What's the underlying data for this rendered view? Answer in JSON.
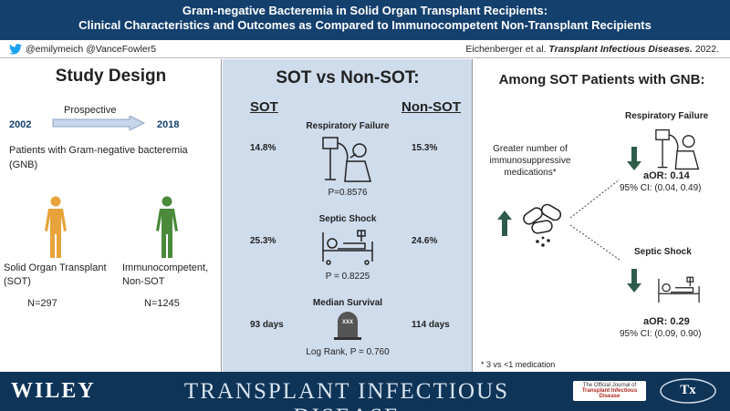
{
  "header": {
    "title_line1": "Gram-negative Bacteremia in Solid Organ Transplant Recipients:",
    "title_line2": "Clinical Characteristics and Outcomes as Compared to Immunocompetent Non-Transplant Recipients"
  },
  "subbar": {
    "handles": "@emilymeich @VanceFowler5",
    "authors": "Eichenberger et al.",
    "journal": "Transplant Infectious Diseases.",
    "year": "2022."
  },
  "left": {
    "heading": "Study Design",
    "year_start": "2002",
    "design": "Prospective",
    "year_end": "2018",
    "population": "Patients with Gram-negative bacteremia (GNB)",
    "sot_label_line1": "Solid Organ Transplant",
    "sot_label_line2": "(SOT)",
    "nonsot_label_line1": "Immunocompetent,",
    "nonsot_label_line2": "Non-SOT",
    "sot_n": "N=297",
    "nonsot_n": "N=1245",
    "colors": {
      "sot_figure": "#e8a33a",
      "nonsot_figure": "#4a8a3a"
    }
  },
  "middle": {
    "heading": "SOT vs Non-SOT:",
    "col_sot": "SOT",
    "col_nonsot": "Non-SOT",
    "outcomes": [
      {
        "name": "Respiratory Failure",
        "sot": "14.8%",
        "nonsot": "15.3%",
        "stat": "P=0.8576",
        "icon": "ventilator-icon"
      },
      {
        "name": "Septic Shock",
        "sot": "25.3%",
        "nonsot": "24.6%",
        "stat": "P = 0.8225",
        "icon": "hospital-bed-icon"
      },
      {
        "name": "Median Survival",
        "sot": "93 days",
        "nonsot": "114 days",
        "stat": "Log Rank, P = 0.760",
        "icon": "tombstone-icon"
      }
    ],
    "tombstone_text": "XXX"
  },
  "right": {
    "heading": "Among SOT Patients with GNB:",
    "exposure": "Greater number of immunosuppressive medications*",
    "outcomes": [
      {
        "name": "Respiratory Failure",
        "aor_label": "aOR:",
        "aor": "0.14",
        "ci": "95% CI: (0.04, 0.49)"
      },
      {
        "name": "Septic Shock",
        "aor_label": "aOR:",
        "aor": "0.29",
        "ci": "95% CI: (0.09, 0.90)"
      }
    ],
    "footnote": "* 3 vs <1 medication"
  },
  "footer": {
    "publisher": "WILEY",
    "journal": "TRANSPLANT INFECTIOUS DISEASE",
    "official_line1": "The Official Journal of",
    "official_line2": "Transplant Infectious Disease",
    "tx_logo_text": "Tx"
  }
}
